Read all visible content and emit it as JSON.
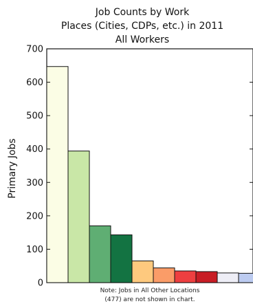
{
  "chart_data": {
    "type": "bar",
    "title_lines": [
      "Job Counts by Work",
      "Places (Cities, CDPs, etc.) in 2011",
      "All Workers"
    ],
    "ylabel": "Primary Jobs",
    "xlabel": "",
    "ylim": [
      0,
      700
    ],
    "yticks": [
      0,
      100,
      200,
      300,
      400,
      500,
      600,
      700
    ],
    "grid": false,
    "values": [
      647,
      394,
      170,
      143,
      65,
      44,
      35,
      33,
      29,
      28
    ],
    "colors": [
      "#fbfde5",
      "#c9e7a7",
      "#5fae73",
      "#137342",
      "#fec97e",
      "#fa9c68",
      "#ee3f40",
      "#c81d25",
      "#eeeef6",
      "#bccbf0"
    ],
    "note_lines": [
      "Note: Jobs in All Other Locations",
      "(477) are not shown in chart."
    ]
  }
}
